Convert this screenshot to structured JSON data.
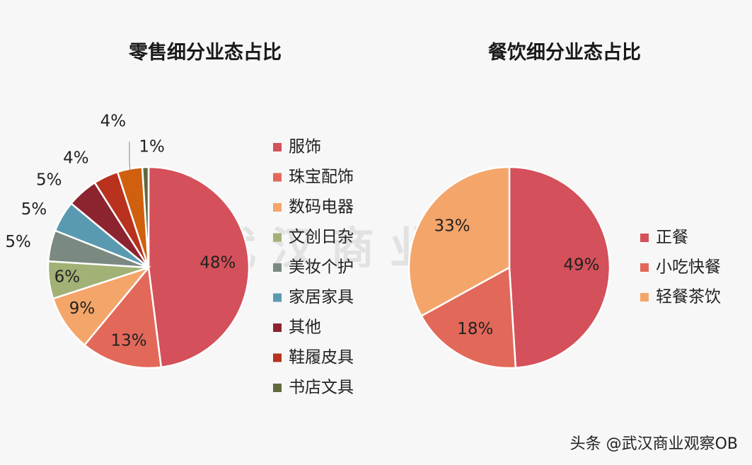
{
  "footer": {
    "credit": "头条 @武汉商业观察OB"
  },
  "watermark": {
    "text": "武 汉 商 业 观 察"
  },
  "chart_data": [
    {
      "type": "pie",
      "title": "零售细分业态占比",
      "slices": [
        {
          "label": "服饰",
          "value": 48,
          "display": "48%",
          "color": "#d4505a"
        },
        {
          "label": "珠宝配饰",
          "value": 13,
          "display": "13%",
          "color": "#e2685a"
        },
        {
          "label": "数码电器",
          "value": 9,
          "display": "9%",
          "color": "#f4a56a"
        },
        {
          "label": "文创日杂",
          "value": 6,
          "display": "6%",
          "color": "#a2b176"
        },
        {
          "label": "美妆个护",
          "value": 5,
          "display": "5%",
          "color": "#7a8a80"
        },
        {
          "label": "家居家具",
          "value": 5,
          "display": "5%",
          "color": "#5a9ab0"
        },
        {
          "label": "其他",
          "value": 5,
          "display": "5%",
          "color": "#8c2430"
        },
        {
          "label": "鞋履皮具",
          "value": 4,
          "display": "4%",
          "color": "#b8321e"
        },
        {
          "label": "",
          "value": 4,
          "display": "4%",
          "color": "#d0600e"
        },
        {
          "label": "书店文具",
          "value": 1,
          "display": "1%",
          "color": "#5f6a3d"
        }
      ],
      "legend": [
        "服饰",
        "珠宝配饰",
        "数码电器",
        "文创日杂",
        "美妆个护",
        "家居家具",
        "其他",
        "鞋履皮具",
        "书店文具"
      ],
      "legend_colors": [
        "#d4505a",
        "#e2685a",
        "#f4a56a",
        "#a2b176",
        "#7a8a80",
        "#5a9ab0",
        "#8c2430",
        "#b8321e",
        "#5f6a3d"
      ],
      "legend_position": "right"
    },
    {
      "type": "pie",
      "title": "餐饮细分业态占比",
      "slices": [
        {
          "label": "正餐",
          "value": 49,
          "display": "49%",
          "color": "#d4505a"
        },
        {
          "label": "小吃快餐",
          "value": 18,
          "display": "18%",
          "color": "#e2685a"
        },
        {
          "label": "轻餐茶饮",
          "value": 33,
          "display": "33%",
          "color": "#f4a56a"
        }
      ],
      "legend": [
        "正餐",
        "小吃快餐",
        "轻餐茶饮"
      ],
      "legend_colors": [
        "#d4505a",
        "#e2685a",
        "#f4a56a"
      ],
      "legend_position": "right"
    }
  ]
}
